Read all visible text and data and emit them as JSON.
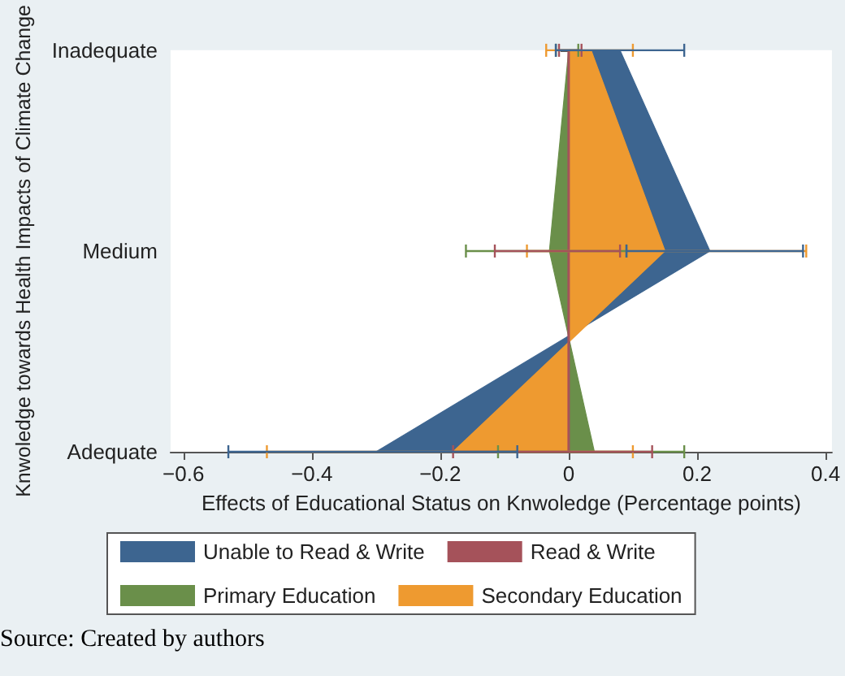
{
  "chart_data": {
    "type": "area",
    "orientation": "horizontal",
    "xlabel": "Effects of Educational Status on Knwoledge (Percentage points)",
    "ylabel": "Knwoledge towards Health Impacts of Climate Change",
    "categories": [
      "Inadequate",
      "Medium",
      "Adequate"
    ],
    "series": [
      {
        "name": "Unable to Read & Write",
        "color": "#3d6590",
        "values": [
          0.08,
          0.22,
          -0.3
        ],
        "errors": [
          [
            -0.02,
            0.18
          ],
          [
            0.09,
            0.365
          ],
          [
            -0.53,
            -0.08
          ]
        ]
      },
      {
        "name": "Read & Write",
        "type": "line",
        "color": "#a5525a",
        "values": [
          0,
          0,
          0
        ],
        "errors": [
          [
            -0.015,
            0.02
          ],
          [
            -0.115,
            0.08
          ],
          [
            -0.18,
            0.13
          ]
        ]
      },
      {
        "name": "Primary Education",
        "color": "#6a8f4a",
        "values": [
          0,
          -0.03,
          0.04
        ],
        "errors": [
          [
            -0.02,
            0.015
          ],
          [
            -0.16,
            0.09
          ],
          [
            -0.11,
            0.18
          ]
        ]
      },
      {
        "name": "Secondary Education",
        "color": "#ee9a30",
        "values": [
          0.035,
          0.15,
          -0.18
        ],
        "errors": [
          [
            -0.035,
            0.1
          ],
          [
            -0.065,
            0.37
          ],
          [
            -0.47,
            0.1
          ]
        ]
      }
    ],
    "xlim": [
      -0.62,
      0.41
    ],
    "xticks": [
      {
        "value": -0.6,
        "label": "−0.6"
      },
      {
        "value": -0.4,
        "label": "−0.4"
      },
      {
        "value": -0.2,
        "label": "−0.2"
      },
      0,
      0.2,
      0.4
    ],
    "legend": "bottom",
    "annotations": [
      "Source: Created by authors"
    ]
  }
}
